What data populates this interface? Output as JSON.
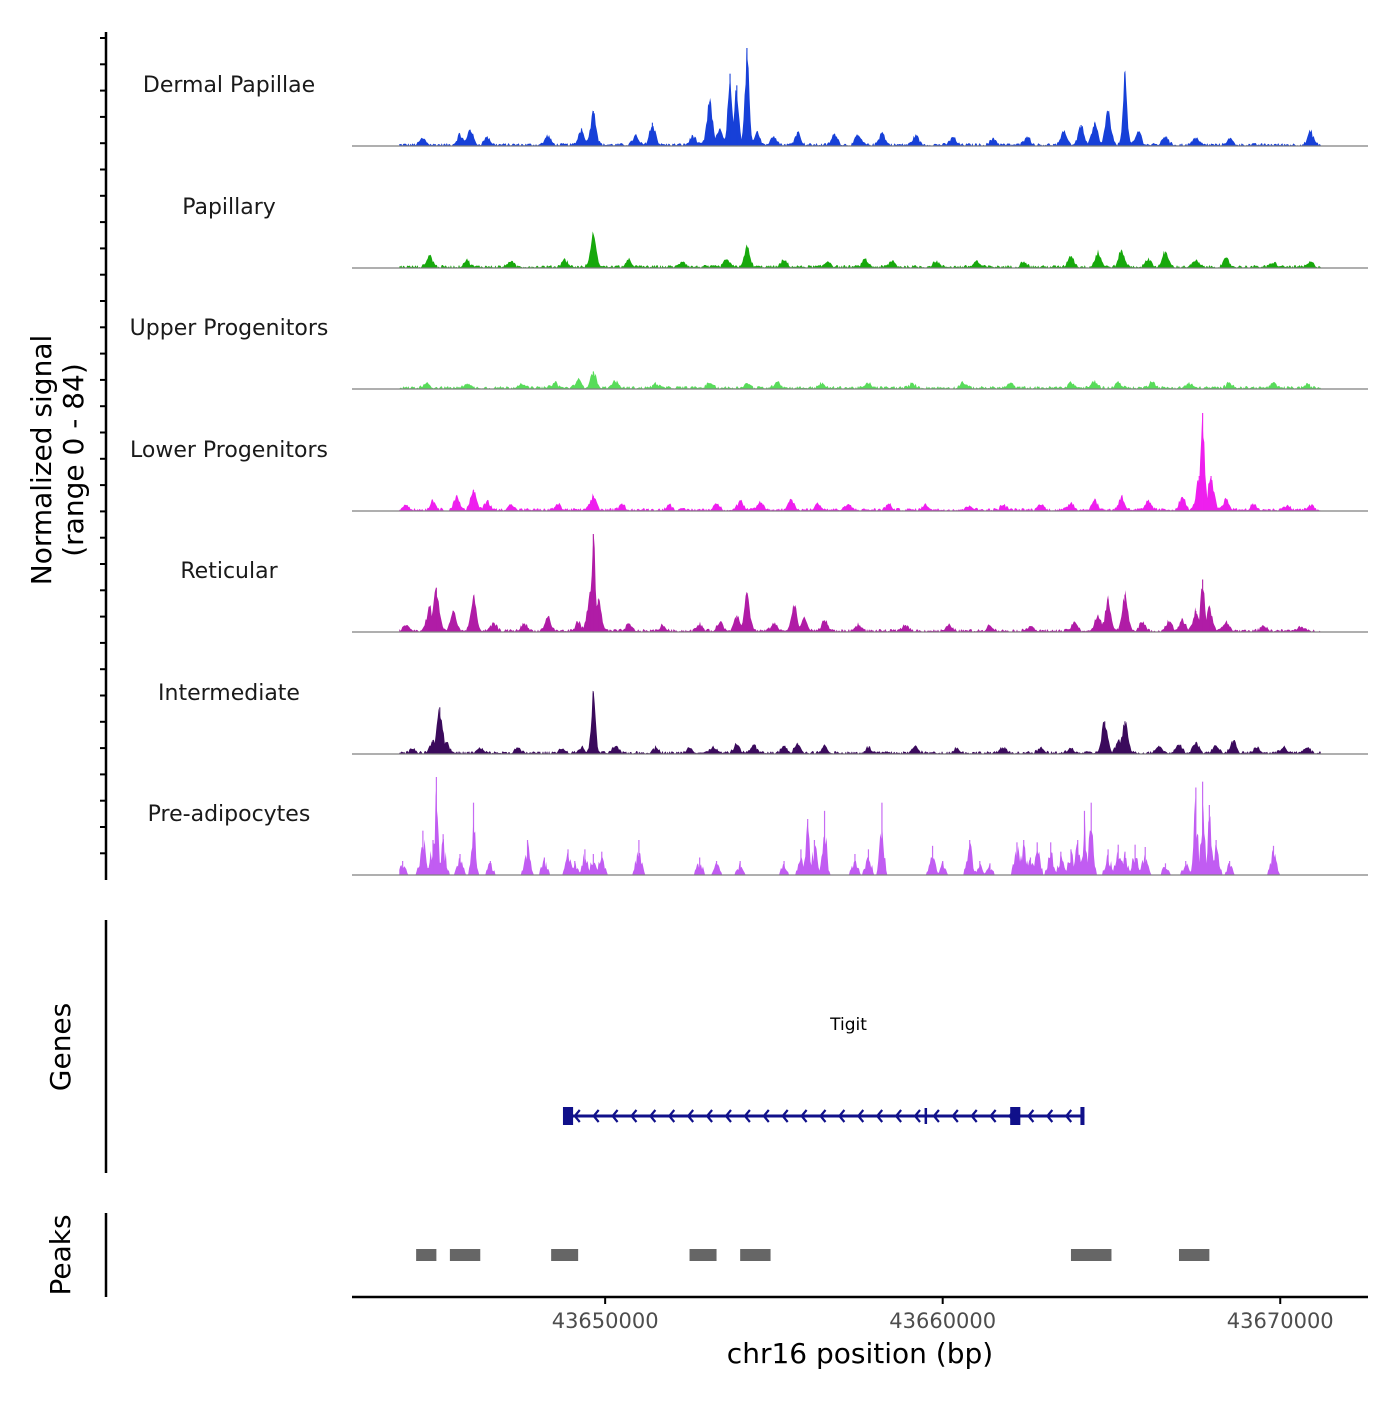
{
  "chart_data": {
    "type": "area",
    "title": "",
    "chromosome": "chr16",
    "xlabel": "chr16 position (bp)",
    "ylabel": "Normalized signal",
    "ylabel_range": "(range 0 - 84)",
    "ylim": [
      0,
      84
    ],
    "xlim": [
      43642500,
      43672600
    ],
    "data_extent": [
      43643900,
      43671200
    ],
    "x_ticks": [
      43650000,
      43660000,
      43670000
    ],
    "x_tick_labels": [
      "43650000",
      "43660000",
      "43670000"
    ],
    "series": [
      {
        "name": "Dermal Papillae",
        "color": "#1740d8",
        "peaks": [
          [
            43644600,
            6
          ],
          [
            43645700,
            9
          ],
          [
            43646000,
            14
          ],
          [
            43646500,
            7
          ],
          [
            43648300,
            8
          ],
          [
            43649300,
            15
          ],
          [
            43649650,
            30
          ],
          [
            43650900,
            8
          ],
          [
            43651400,
            20
          ],
          [
            43652600,
            8
          ],
          [
            43653100,
            38
          ],
          [
            43653400,
            15
          ],
          [
            43653700,
            62
          ],
          [
            43653900,
            52
          ],
          [
            43654200,
            84
          ],
          [
            43654500,
            12
          ],
          [
            43655000,
            8
          ],
          [
            43655700,
            12
          ],
          [
            43656800,
            10
          ],
          [
            43657500,
            9
          ],
          [
            43658200,
            11
          ],
          [
            43659200,
            9
          ],
          [
            43660300,
            7
          ],
          [
            43661500,
            6
          ],
          [
            43662500,
            8
          ],
          [
            43663600,
            12
          ],
          [
            43664100,
            18
          ],
          [
            43664500,
            20
          ],
          [
            43664900,
            30
          ],
          [
            43665400,
            62
          ],
          [
            43665800,
            12
          ],
          [
            43666600,
            8
          ],
          [
            43667500,
            7
          ],
          [
            43668500,
            6
          ],
          [
            43670900,
            12
          ]
        ]
      },
      {
        "name": "Papillary",
        "color": "#17a80c",
        "peaks": [
          [
            43644800,
            11
          ],
          [
            43645900,
            6
          ],
          [
            43647200,
            5
          ],
          [
            43648800,
            7
          ],
          [
            43649650,
            28
          ],
          [
            43650700,
            6
          ],
          [
            43652300,
            5
          ],
          [
            43653600,
            7
          ],
          [
            43654200,
            17
          ],
          [
            43655300,
            6
          ],
          [
            43656600,
            5
          ],
          [
            43657700,
            7
          ],
          [
            43658500,
            5
          ],
          [
            43659800,
            5
          ],
          [
            43661000,
            5
          ],
          [
            43662400,
            5
          ],
          [
            43663800,
            10
          ],
          [
            43664600,
            13
          ],
          [
            43665300,
            15
          ],
          [
            43666100,
            7
          ],
          [
            43666600,
            14
          ],
          [
            43667500,
            6
          ],
          [
            43668400,
            7
          ],
          [
            43669800,
            4
          ],
          [
            43670900,
            4
          ]
        ]
      },
      {
        "name": "Upper Progenitors",
        "color": "#58dc5a",
        "peaks": [
          [
            43644700,
            5
          ],
          [
            43645900,
            4
          ],
          [
            43647500,
            4
          ],
          [
            43648500,
            5
          ],
          [
            43649200,
            7
          ],
          [
            43649650,
            15
          ],
          [
            43650300,
            6
          ],
          [
            43651500,
            4
          ],
          [
            43653100,
            5
          ],
          [
            43654200,
            4
          ],
          [
            43655100,
            6
          ],
          [
            43656400,
            4
          ],
          [
            43657800,
            4
          ],
          [
            43659100,
            4
          ],
          [
            43660600,
            5
          ],
          [
            43662000,
            4
          ],
          [
            43663800,
            5
          ],
          [
            43664500,
            6
          ],
          [
            43665200,
            5
          ],
          [
            43666200,
            6
          ],
          [
            43667300,
            4
          ],
          [
            43668500,
            5
          ],
          [
            43669800,
            4
          ],
          [
            43670800,
            3
          ]
        ]
      },
      {
        "name": "Lower Progenitors",
        "color": "#ee1fee",
        "peaks": [
          [
            43644100,
            5
          ],
          [
            43644900,
            8
          ],
          [
            43645600,
            12
          ],
          [
            43646100,
            18
          ],
          [
            43646500,
            8
          ],
          [
            43647200,
            5
          ],
          [
            43648600,
            5
          ],
          [
            43649650,
            13
          ],
          [
            43650500,
            5
          ],
          [
            43651900,
            5
          ],
          [
            43653300,
            6
          ],
          [
            43654000,
            8
          ],
          [
            43654600,
            7
          ],
          [
            43655500,
            10
          ],
          [
            43656300,
            6
          ],
          [
            43657200,
            5
          ],
          [
            43658400,
            5
          ],
          [
            43659500,
            5
          ],
          [
            43660800,
            4
          ],
          [
            43661800,
            5
          ],
          [
            43662900,
            5
          ],
          [
            43663800,
            7
          ],
          [
            43664500,
            9
          ],
          [
            43665300,
            12
          ],
          [
            43666100,
            8
          ],
          [
            43667100,
            12
          ],
          [
            43667600,
            30
          ],
          [
            43667700,
            84
          ],
          [
            43667950,
            30
          ],
          [
            43668400,
            10
          ],
          [
            43669200,
            5
          ],
          [
            43670200,
            4
          ],
          [
            43670900,
            4
          ]
        ]
      },
      {
        "name": "Reticular",
        "color": "#b01ca6",
        "peaks": [
          [
            43644100,
            5
          ],
          [
            43644800,
            22
          ],
          [
            43645000,
            38
          ],
          [
            43645500,
            18
          ],
          [
            43646100,
            28
          ],
          [
            43646700,
            7
          ],
          [
            43647600,
            7
          ],
          [
            43648300,
            12
          ],
          [
            43649200,
            8
          ],
          [
            43649550,
            30
          ],
          [
            43649650,
            84
          ],
          [
            43649800,
            28
          ],
          [
            43650700,
            6
          ],
          [
            43651700,
            5
          ],
          [
            43652800,
            6
          ],
          [
            43653400,
            8
          ],
          [
            43653900,
            14
          ],
          [
            43654200,
            32
          ],
          [
            43655000,
            7
          ],
          [
            43655600,
            22
          ],
          [
            43655900,
            12
          ],
          [
            43656500,
            10
          ],
          [
            43657500,
            6
          ],
          [
            43658900,
            6
          ],
          [
            43660200,
            5
          ],
          [
            43661400,
            5
          ],
          [
            43662600,
            5
          ],
          [
            43663900,
            8
          ],
          [
            43664600,
            14
          ],
          [
            43664900,
            28
          ],
          [
            43665400,
            32
          ],
          [
            43665900,
            8
          ],
          [
            43666700,
            9
          ],
          [
            43667100,
            10
          ],
          [
            43667500,
            18
          ],
          [
            43667700,
            45
          ],
          [
            43667900,
            20
          ],
          [
            43668400,
            8
          ],
          [
            43669500,
            5
          ],
          [
            43670600,
            4
          ]
        ]
      },
      {
        "name": "Intermediate",
        "color": "#3b0a5c",
        "peaks": [
          [
            43644300,
            4
          ],
          [
            43644900,
            12
          ],
          [
            43645100,
            40
          ],
          [
            43645300,
            10
          ],
          [
            43646300,
            4
          ],
          [
            43647400,
            4
          ],
          [
            43648700,
            4
          ],
          [
            43649300,
            5
          ],
          [
            43649650,
            52
          ],
          [
            43650300,
            6
          ],
          [
            43651500,
            5
          ],
          [
            43652500,
            5
          ],
          [
            43653200,
            6
          ],
          [
            43653900,
            8
          ],
          [
            43654400,
            7
          ],
          [
            43655300,
            6
          ],
          [
            43655700,
            9
          ],
          [
            43656500,
            6
          ],
          [
            43657800,
            5
          ],
          [
            43659200,
            6
          ],
          [
            43660400,
            4
          ],
          [
            43661800,
            5
          ],
          [
            43662900,
            4
          ],
          [
            43663800,
            4
          ],
          [
            43664800,
            28
          ],
          [
            43665200,
            10
          ],
          [
            43665400,
            28
          ],
          [
            43666400,
            7
          ],
          [
            43667000,
            8
          ],
          [
            43667500,
            10
          ],
          [
            43668100,
            7
          ],
          [
            43668600,
            11
          ],
          [
            43669300,
            5
          ],
          [
            43670100,
            6
          ],
          [
            43670800,
            5
          ]
        ]
      },
      {
        "name": "Pre-adipocytes",
        "color": "#c15cf2",
        "peaks": [
          [
            43644000,
            12
          ],
          [
            43644600,
            38
          ],
          [
            43644900,
            30
          ],
          [
            43645000,
            84
          ],
          [
            43645200,
            35
          ],
          [
            43645700,
            18
          ],
          [
            43646100,
            62
          ],
          [
            43646600,
            12
          ],
          [
            43647700,
            30
          ],
          [
            43648200,
            15
          ],
          [
            43648900,
            22
          ],
          [
            43649100,
            12
          ],
          [
            43649400,
            22
          ],
          [
            43649650,
            18
          ],
          [
            43649900,
            20
          ],
          [
            43651000,
            30
          ],
          [
            43652800,
            15
          ],
          [
            43653300,
            12
          ],
          [
            43654000,
            12
          ],
          [
            43655300,
            12
          ],
          [
            43655800,
            22
          ],
          [
            43656000,
            48
          ],
          [
            43656200,
            30
          ],
          [
            43656500,
            55
          ],
          [
            43657400,
            18
          ],
          [
            43657800,
            22
          ],
          [
            43658200,
            62
          ],
          [
            43659700,
            25
          ],
          [
            43660000,
            12
          ],
          [
            43660800,
            30
          ],
          [
            43661100,
            12
          ],
          [
            43661400,
            10
          ],
          [
            43662200,
            28
          ],
          [
            43662400,
            30
          ],
          [
            43662600,
            15
          ],
          [
            43662800,
            28
          ],
          [
            43663200,
            28
          ],
          [
            43663500,
            20
          ],
          [
            43663800,
            22
          ],
          [
            43664000,
            30
          ],
          [
            43664200,
            55
          ],
          [
            43664400,
            62
          ],
          [
            43664900,
            22
          ],
          [
            43665200,
            26
          ],
          [
            43665400,
            20
          ],
          [
            43665700,
            26
          ],
          [
            43666000,
            24
          ],
          [
            43666600,
            10
          ],
          [
            43667200,
            12
          ],
          [
            43667500,
            75
          ],
          [
            43667700,
            80
          ],
          [
            43667900,
            60
          ],
          [
            43668100,
            30
          ],
          [
            43668500,
            12
          ],
          [
            43669800,
            25
          ]
        ]
      }
    ],
    "gene_track": {
      "label": "Genes",
      "gene_name": "Tigit",
      "color": "#10108a",
      "strand": "-",
      "start": 43648800,
      "end": 43664200,
      "exons": [
        [
          43648750,
          43649050
        ],
        [
          43662000,
          43662300
        ],
        [
          43664080,
          43664200
        ]
      ],
      "breaks": [
        43659500
      ]
    },
    "peak_track": {
      "label": "Peaks",
      "color": "#666666",
      "regions": [
        [
          43644400,
          43645000
        ],
        [
          43645400,
          43646300
        ],
        [
          43648400,
          43649200
        ],
        [
          43652500,
          43653300
        ],
        [
          43654000,
          43654900
        ],
        [
          43663800,
          43665000
        ],
        [
          43667000,
          43667900
        ]
      ]
    }
  }
}
